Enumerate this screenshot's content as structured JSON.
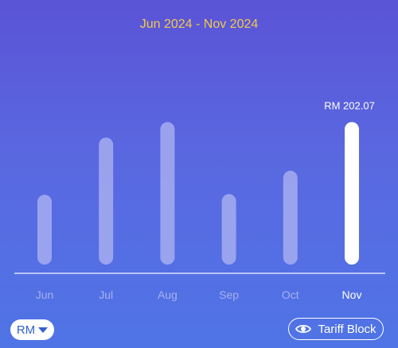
{
  "header": {
    "period": "Jun 2024 - Nov 2024"
  },
  "chart_data": {
    "type": "bar",
    "categories": [
      "Jun",
      "Jul",
      "Aug",
      "Sep",
      "Oct",
      "Nov"
    ],
    "values": [
      99,
      180,
      202,
      100,
      133,
      202.07
    ],
    "selected_index": 5,
    "selected_label": "RM 202.07",
    "unit": "RM",
    "ylim": [
      0,
      205
    ],
    "grid": false,
    "colors": {
      "bar": "#a6adf0",
      "selected_bar": "#ffffff",
      "label": "#a8b0ee",
      "selected_label": "#ffffff"
    }
  },
  "controls": {
    "unit_label": "RM",
    "tariff_label": "Tariff Block",
    "tariff_icon": "eye-icon",
    "unit_icon": "caret-down-icon"
  },
  "colors": {
    "accent": "#f2c94c",
    "button_text": "#2f5fd0"
  }
}
